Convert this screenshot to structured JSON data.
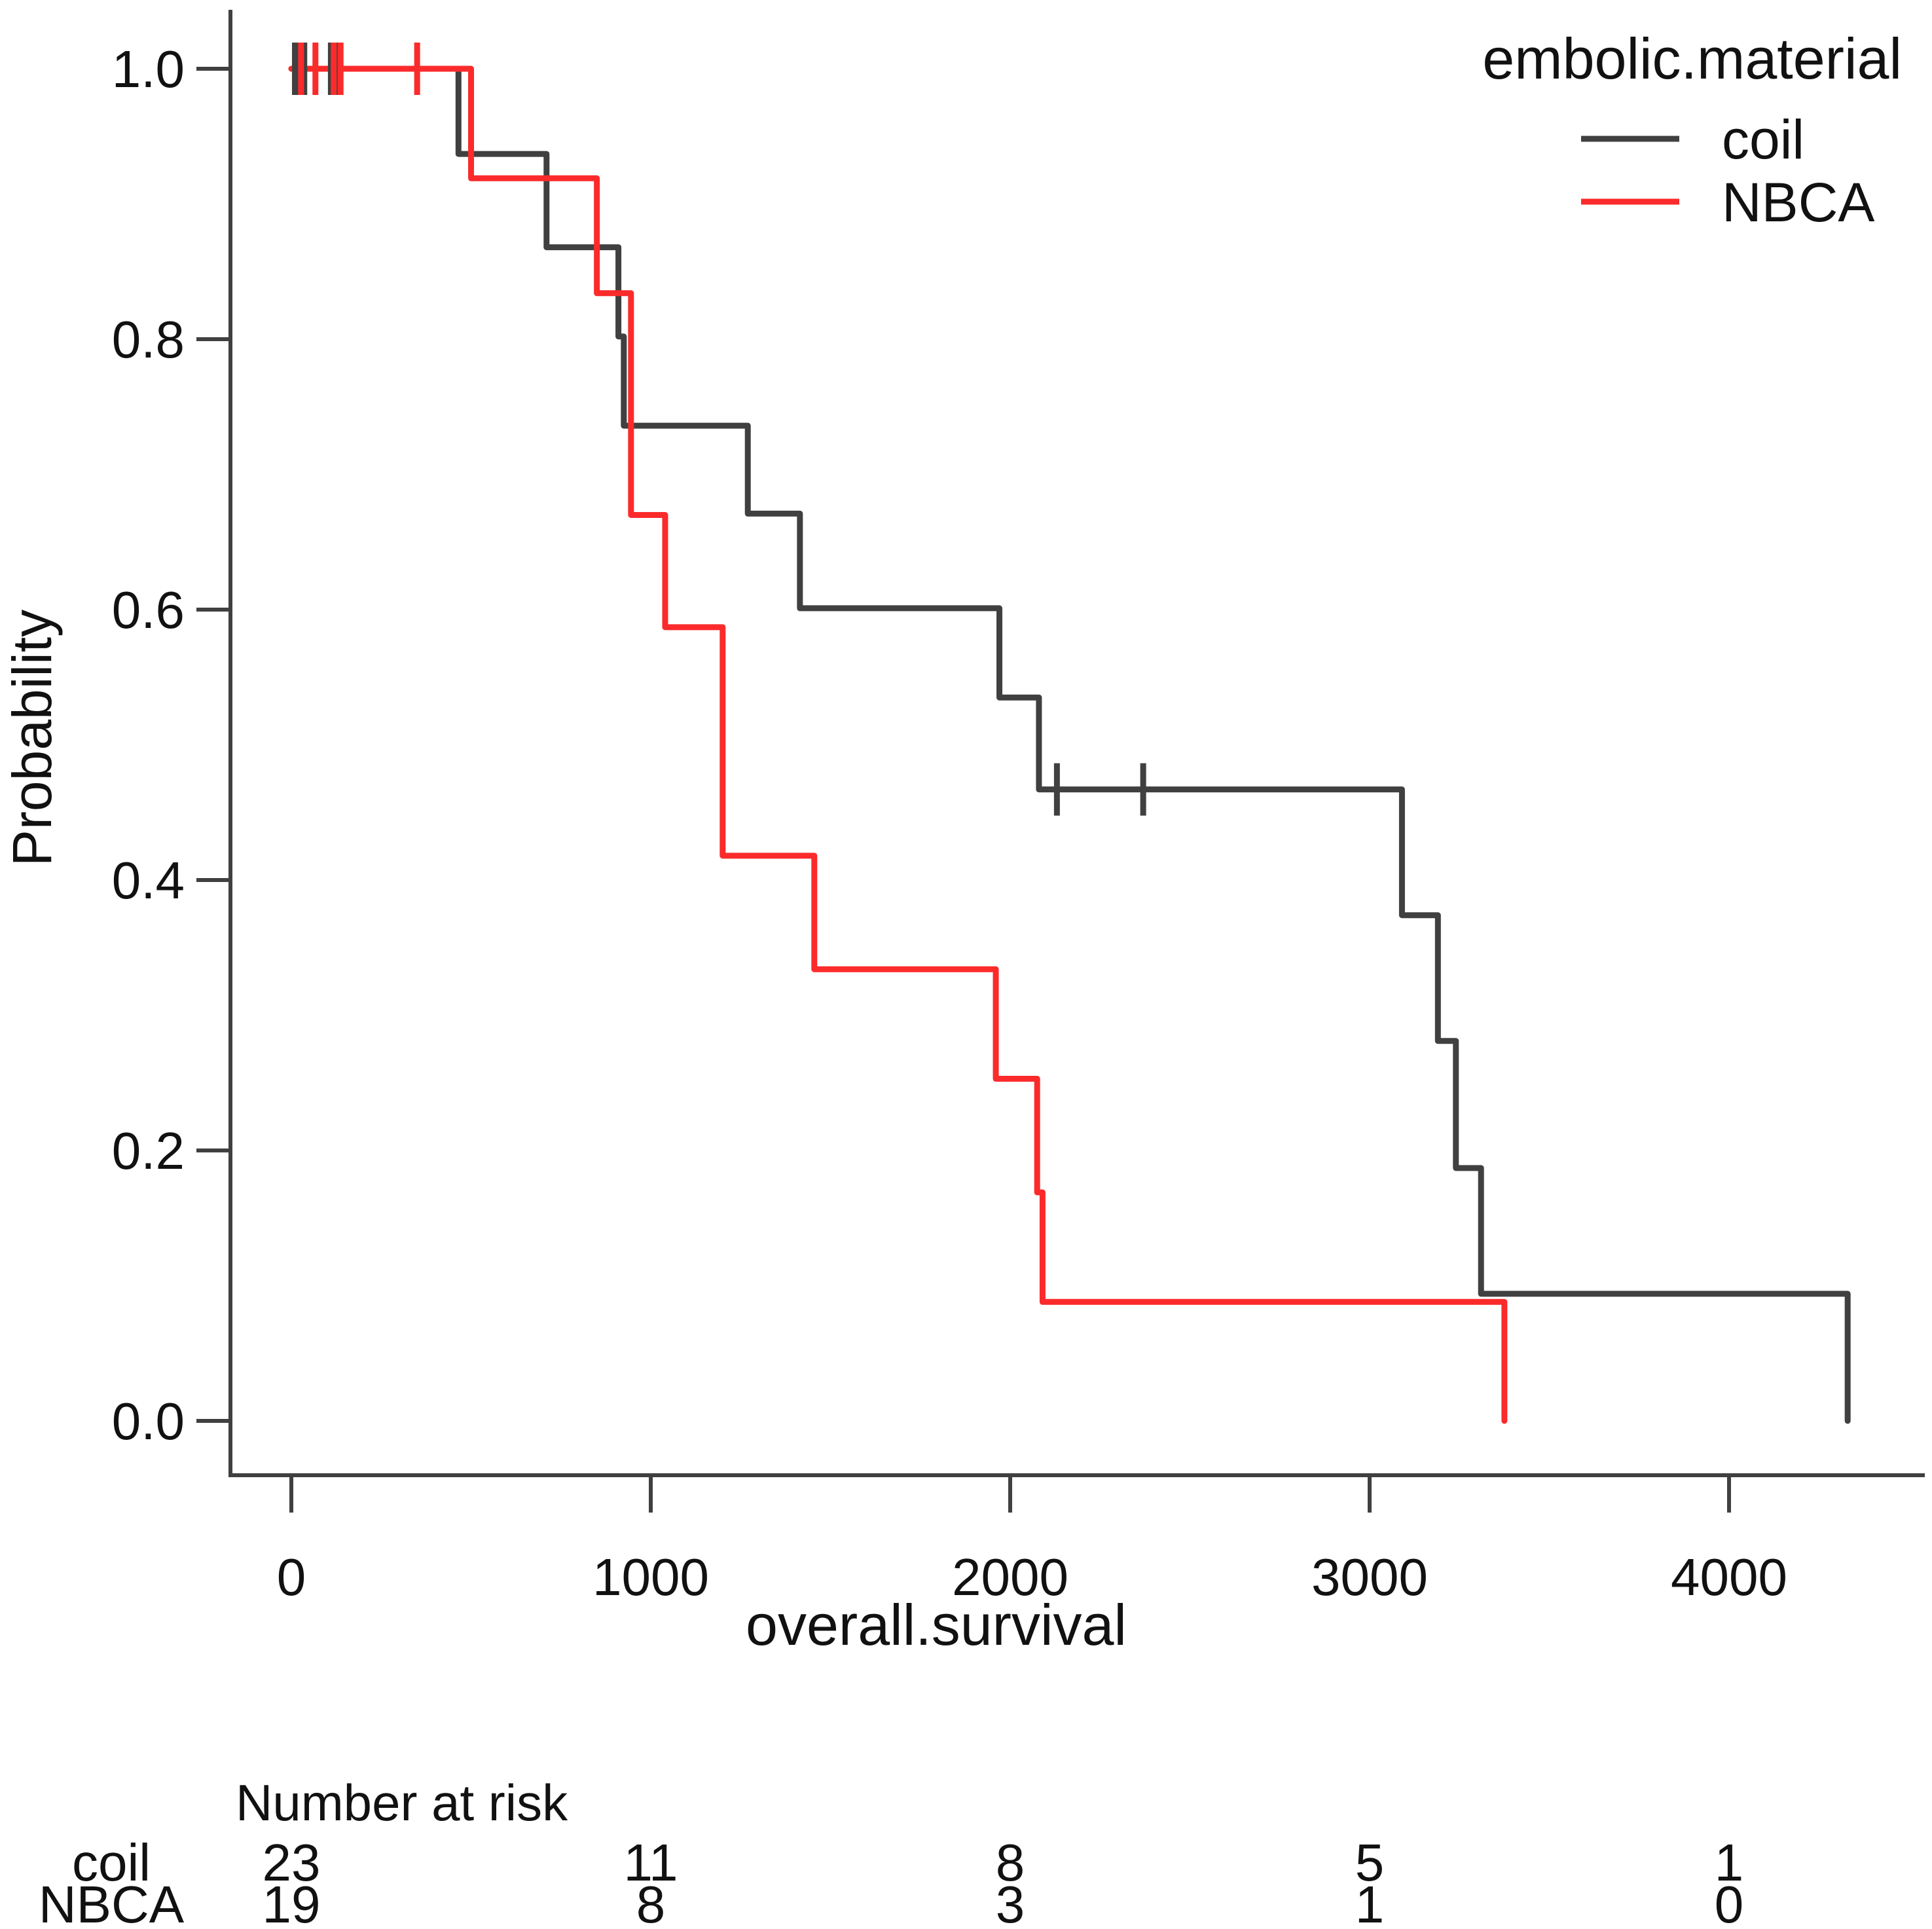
{
  "legend": {
    "title": "embolic.material",
    "items": [
      {
        "label": "coil",
        "color": "#404040"
      },
      {
        "label": "NBCA",
        "color": "#fb2b2b"
      }
    ]
  },
  "axes": {
    "x_label": "overall.survival",
    "y_label": "Probability",
    "x_tick_labels": [
      "0",
      "1000",
      "2000",
      "3000",
      "4000"
    ],
    "y_tick_labels": [
      "0.0",
      "0.2",
      "0.4",
      "0.6",
      "0.8",
      "1.0"
    ]
  },
  "risk_table": {
    "header": "Number at risk",
    "rows": [
      {
        "label": "coil",
        "values": [
          "23",
          "11",
          "8",
          "5",
          "1"
        ]
      },
      {
        "label": "NBCA",
        "values": [
          "19",
          "8",
          "3",
          "1",
          "0"
        ]
      }
    ]
  },
  "chart_data": {
    "type": "line",
    "subtype": "kaplan-meier-step",
    "title": "",
    "xlabel": "overall.survival",
    "ylabel": "Probability",
    "xlim": [
      0,
      4400
    ],
    "ylim": [
      0.0,
      1.0
    ],
    "grid": false,
    "legend_position": "top-right",
    "x_ticks": [
      0,
      1000,
      2000,
      3000,
      4000
    ],
    "y_ticks": [
      0.0,
      0.2,
      0.4,
      0.6,
      0.8,
      1.0
    ],
    "series": [
      {
        "name": "coil",
        "color": "#404040",
        "points": [
          [
            0,
            1.0
          ],
          [
            465,
            0.937
          ],
          [
            710,
            0.868
          ],
          [
            910,
            0.802
          ],
          [
            925,
            0.736
          ],
          [
            1270,
            0.671
          ],
          [
            1415,
            0.601
          ],
          [
            1970,
            0.535
          ],
          [
            2080,
            0.467
          ],
          [
            3090,
            0.374
          ],
          [
            3190,
            0.281
          ],
          [
            3240,
            0.187
          ],
          [
            3310,
            0.094
          ],
          [
            4330,
            0.0
          ]
        ],
        "censors": [
          [
            10,
            1.0
          ],
          [
            18,
            1.0
          ],
          [
            36,
            1.0
          ],
          [
            110,
            1.0
          ],
          [
            130,
            1.0
          ],
          [
            2130,
            0.467
          ],
          [
            2370,
            0.467
          ]
        ]
      },
      {
        "name": "NBCA",
        "color": "#fb2b2b",
        "points": [
          [
            0,
            1.0
          ],
          [
            500,
            0.919
          ],
          [
            850,
            0.834
          ],
          [
            945,
            0.67
          ],
          [
            1040,
            0.587
          ],
          [
            1200,
            0.418
          ],
          [
            1455,
            0.334
          ],
          [
            1960,
            0.253
          ],
          [
            2075,
            0.169
          ],
          [
            2090,
            0.088
          ],
          [
            3375,
            0.0
          ]
        ],
        "censors": [
          [
            27,
            1.0
          ],
          [
            67,
            1.0
          ],
          [
            118,
            1.0
          ],
          [
            137,
            1.0
          ],
          [
            350,
            1.0
          ]
        ]
      }
    ],
    "number_at_risk": {
      "times": [
        0,
        1000,
        2000,
        3000,
        4000
      ],
      "coil": [
        23,
        11,
        8,
        5,
        1
      ],
      "NBCA": [
        19,
        8,
        3,
        1,
        0
      ]
    }
  }
}
